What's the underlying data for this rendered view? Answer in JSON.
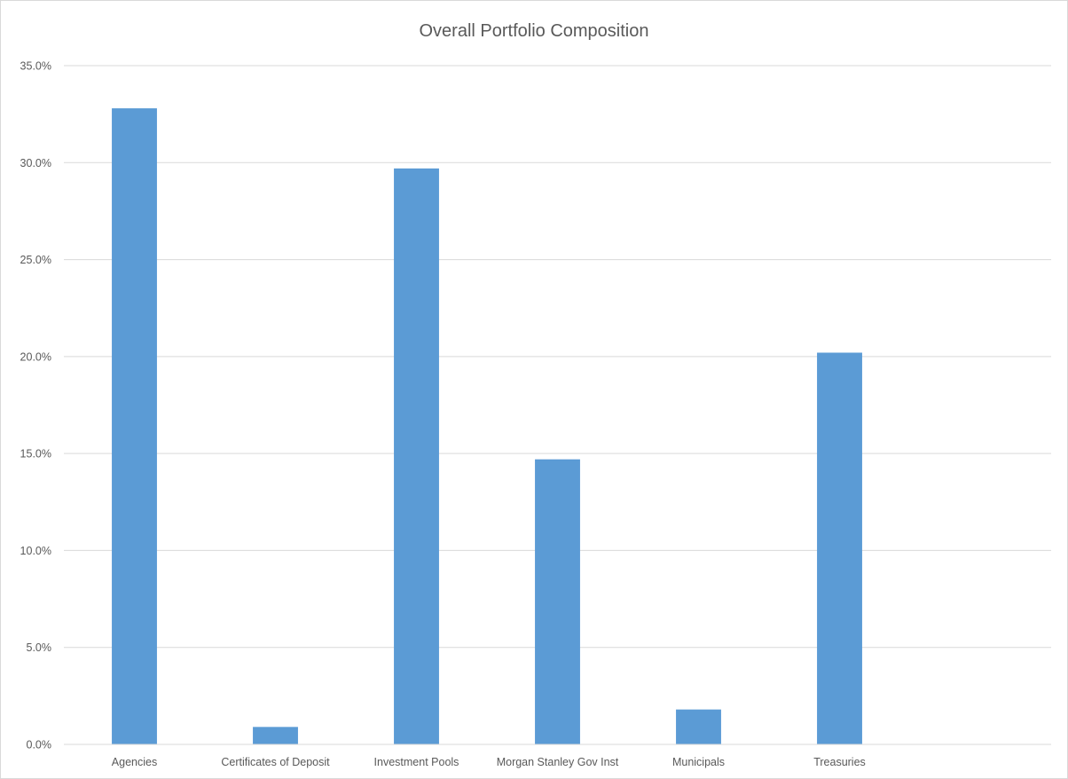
{
  "chart_data": {
    "type": "bar",
    "title": "Overall Portfolio Composition",
    "xlabel": "",
    "ylabel": "",
    "categories": [
      "Agencies",
      "Certificates of Deposit",
      "Investment Pools",
      "Morgan Stanley Gov Inst",
      "Municipals",
      "Treasuries",
      ""
    ],
    "series": [
      {
        "values": [
          32.8,
          0.9,
          29.7,
          14.7,
          1.8,
          20.2,
          null
        ]
      }
    ],
    "ylim": [
      0,
      35
    ],
    "ytick_step": 5,
    "ytick_format": "percent_1dp",
    "grid": true,
    "legend": "none",
    "colors": {
      "bar": "#5b9bd5",
      "grid": "#d9d9d9",
      "axis": "#d9d9d9",
      "text": "#595959"
    }
  }
}
